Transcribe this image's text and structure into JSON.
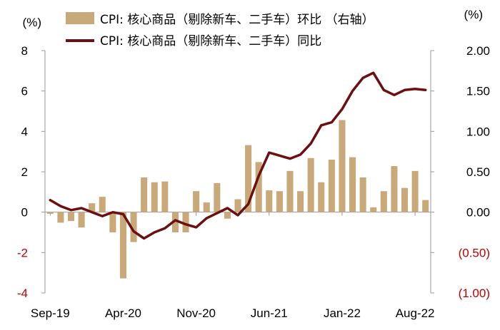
{
  "chart_data": {
    "type": "bar+line",
    "left_unit": "(%)",
    "right_unit": "(%)",
    "legend": [
      {
        "label": "CPI: 核心商品（剔除新车、二手车）环比 （右轴）",
        "kind": "bar",
        "color": "#c9a87a"
      },
      {
        "label": "CPI: 核心商品（剔除新车、二手车）同比",
        "kind": "line",
        "color": "#6b0f10"
      }
    ],
    "left_axis": {
      "min": -4,
      "max": 8,
      "ticks": [
        {
          "value": -4,
          "label": "-4"
        },
        {
          "value": -2,
          "label": "-2"
        },
        {
          "value": 0,
          "label": "0"
        },
        {
          "value": 2,
          "label": "2"
        },
        {
          "value": 4,
          "label": "4"
        },
        {
          "value": 6,
          "label": "6"
        },
        {
          "value": 8,
          "label": "8"
        }
      ]
    },
    "right_axis": {
      "min": -1.0,
      "max": 2.0,
      "ticks": [
        {
          "value": -1.0,
          "label": "(1.00)"
        },
        {
          "value": -0.5,
          "label": "(0.50)"
        },
        {
          "value": 0.0,
          "label": "0.00"
        },
        {
          "value": 0.5,
          "label": "0.50"
        },
        {
          "value": 1.0,
          "label": "1.00"
        },
        {
          "value": 1.5,
          "label": "1.50"
        },
        {
          "value": 2.0,
          "label": "2.00"
        }
      ]
    },
    "x_labels": [
      {
        "index": 0,
        "label": "Sep-19"
      },
      {
        "index": 7,
        "label": "Apr-20"
      },
      {
        "index": 14,
        "label": "Nov-20"
      },
      {
        "index": 21,
        "label": "Jun-21"
      },
      {
        "index": 28,
        "label": "Jan-22"
      },
      {
        "index": 35,
        "label": "Aug-22"
      }
    ],
    "months": [
      "Sep-19",
      "Oct-19",
      "Nov-19",
      "Dec-19",
      "Jan-20",
      "Feb-20",
      "Mar-20",
      "Apr-20",
      "May-20",
      "Jun-20",
      "Jul-20",
      "Aug-20",
      "Sep-20",
      "Oct-20",
      "Nov-20",
      "Dec-20",
      "Jan-21",
      "Feb-21",
      "Mar-21",
      "Apr-21",
      "May-21",
      "Jun-21",
      "Jul-21",
      "Aug-21",
      "Sep-21",
      "Oct-21",
      "Nov-21",
      "Dec-21",
      "Jan-22",
      "Feb-22",
      "Mar-22",
      "Apr-22",
      "May-22",
      "Jun-22",
      "Jul-22",
      "Aug-22",
      "Sep-22"
    ],
    "series": [
      {
        "name": "CPI: 核心商品（剔除新车、二手车）环比 （右轴）",
        "axis": "right",
        "kind": "bar",
        "values": [
          -0.02,
          -0.13,
          -0.11,
          -0.19,
          0.11,
          0.19,
          -0.25,
          -0.82,
          -0.37,
          0.43,
          0.37,
          0.38,
          -0.25,
          -0.25,
          0.26,
          0.12,
          0.36,
          -0.08,
          0.16,
          0.83,
          0.62,
          0.27,
          0.26,
          0.51,
          0.26,
          0.67,
          0.37,
          0.65,
          1.14,
          0.68,
          0.43,
          0.06,
          0.26,
          0.57,
          0.3,
          0.51,
          0.15
        ]
      },
      {
        "name": "CPI: 核心商品（剔除新车、二手车）同比",
        "axis": "left",
        "kind": "line",
        "values": [
          0.6,
          0.3,
          0.1,
          0.2,
          0.0,
          -0.2,
          0.0,
          -0.1,
          -0.95,
          -1.3,
          -1.0,
          -0.8,
          -0.4,
          -0.6,
          -0.75,
          -0.3,
          -0.05,
          0.2,
          -0.15,
          0.4,
          1.8,
          2.95,
          2.8,
          2.65,
          2.85,
          3.4,
          4.3,
          4.45,
          5.1,
          6.0,
          6.65,
          6.9,
          6.05,
          5.8,
          6.05,
          6.1,
          6.05
        ]
      }
    ]
  }
}
